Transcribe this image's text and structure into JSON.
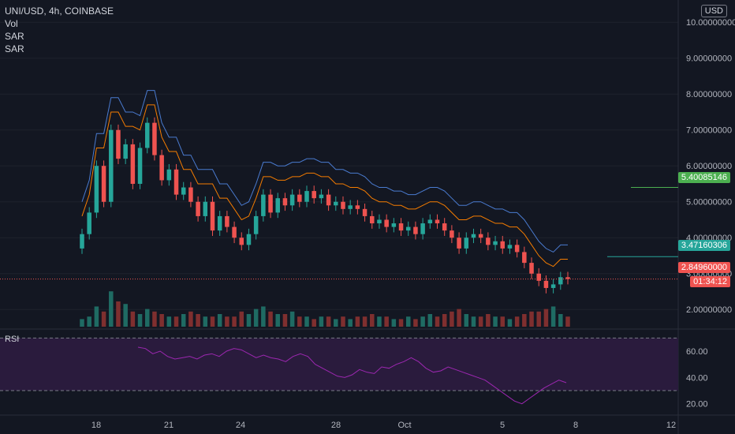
{
  "legend": {
    "symbol": "UNI/USD, 4h, COINBASE",
    "vol": "Vol",
    "sar1": "SAR",
    "sar2": "SAR"
  },
  "rsi_label": "RSI",
  "currency": "USD",
  "price_axis": [
    "10.00000000",
    "9.00000000",
    "8.00000000",
    "7.00000000",
    "6.00000000",
    "5.00000000",
    "4.00000000",
    "3.00000000",
    "2.00000000"
  ],
  "rsi_axis": [
    "60.00",
    "40.00",
    "20.00"
  ],
  "time_axis": [
    "18",
    "21",
    "24",
    "28",
    "Oct",
    "5",
    "8",
    "12"
  ],
  "tags": {
    "green_level": "5.40085146",
    "teal_level": "3.47160306",
    "last_price": "2.84960000",
    "countdown": "01:34:12"
  },
  "colors": {
    "background": "#131722",
    "up": "#26a69a",
    "down": "#ef5350",
    "sar_blue": "#4a7bd0",
    "sar_orange": "#f57c00",
    "rsi_line": "#9c27b0",
    "rsi_band": "#2a1b3d"
  },
  "chart_data": {
    "type": "candlestick",
    "ylim": [
      1.5,
      10.4
    ],
    "rsi_ylim": [
      15,
      75
    ],
    "rsi_bands": [
      70,
      30
    ],
    "horizontal_levels": [
      5.40085146,
      3.47160306,
      2.8496
    ],
    "candles": [
      [
        3.7,
        4.1
      ],
      [
        4.1,
        4.7
      ],
      [
        4.7,
        6.0
      ],
      [
        6.0,
        5.0
      ],
      [
        5.0,
        7.0
      ],
      [
        7.0,
        6.2
      ],
      [
        6.2,
        6.6
      ],
      [
        6.6,
        5.5
      ],
      [
        5.5,
        6.5
      ],
      [
        6.5,
        7.2
      ],
      [
        7.2,
        6.3
      ],
      [
        6.3,
        5.6
      ],
      [
        5.6,
        5.9
      ],
      [
        5.9,
        5.2
      ],
      [
        5.2,
        5.4
      ],
      [
        5.4,
        5.0
      ],
      [
        5.0,
        4.6
      ],
      [
        4.6,
        5.0
      ],
      [
        5.0,
        4.2
      ],
      [
        4.2,
        4.6
      ],
      [
        4.6,
        4.3
      ],
      [
        4.3,
        4.0
      ],
      [
        4.0,
        3.8
      ],
      [
        3.8,
        4.1
      ],
      [
        4.1,
        4.6
      ],
      [
        4.6,
        5.2
      ],
      [
        5.2,
        4.7
      ],
      [
        4.7,
        5.1
      ],
      [
        5.1,
        4.9
      ],
      [
        4.9,
        5.2
      ],
      [
        5.2,
        5.0
      ],
      [
        5.0,
        5.3
      ],
      [
        5.3,
        5.1
      ],
      [
        5.1,
        5.2
      ],
      [
        5.2,
        4.9
      ],
      [
        4.9,
        5.0
      ],
      [
        5.0,
        4.8
      ],
      [
        4.8,
        4.9
      ],
      [
        4.9,
        4.8
      ],
      [
        4.8,
        4.6
      ],
      [
        4.6,
        4.4
      ],
      [
        4.4,
        4.5
      ],
      [
        4.5,
        4.3
      ],
      [
        4.3,
        4.4
      ],
      [
        4.4,
        4.2
      ],
      [
        4.2,
        4.3
      ],
      [
        4.3,
        4.1
      ],
      [
        4.1,
        4.4
      ],
      [
        4.4,
        4.5
      ],
      [
        4.5,
        4.4
      ],
      [
        4.4,
        4.2
      ],
      [
        4.2,
        4.0
      ],
      [
        4.0,
        3.7
      ],
      [
        3.7,
        4.0
      ],
      [
        4.0,
        4.1
      ],
      [
        4.1,
        4.0
      ],
      [
        4.0,
        3.8
      ],
      [
        3.8,
        3.9
      ],
      [
        3.9,
        3.7
      ],
      [
        3.7,
        3.8
      ],
      [
        3.8,
        3.6
      ],
      [
        3.6,
        3.3
      ],
      [
        3.3,
        3.0
      ],
      [
        3.0,
        2.8
      ],
      [
        2.8,
        2.6
      ],
      [
        2.6,
        2.7
      ],
      [
        2.7,
        2.9
      ],
      [
        2.9,
        2.85
      ]
    ],
    "volumes": [
      3,
      4,
      8,
      6,
      14,
      10,
      9,
      6,
      5,
      7,
      6,
      5,
      4,
      4,
      5,
      6,
      5,
      4,
      4,
      5,
      4,
      4,
      6,
      5,
      7,
      8,
      6,
      5,
      5,
      6,
      4,
      4,
      3,
      4,
      4,
      3,
      4,
      3,
      4,
      4,
      5,
      4,
      4,
      3,
      3,
      4,
      3,
      4,
      5,
      4,
      5,
      6,
      7,
      5,
      4,
      4,
      5,
      4,
      4,
      3,
      4,
      5,
      6,
      6,
      7,
      8,
      5,
      4
    ],
    "rsi": [
      63,
      62,
      58,
      60,
      56,
      54,
      55,
      56,
      54,
      57,
      58,
      56,
      60,
      62,
      61,
      58,
      55,
      57,
      55,
      54,
      52,
      56,
      58,
      56,
      50,
      47,
      44,
      41,
      40,
      42,
      46,
      44,
      43,
      48,
      47,
      50,
      52,
      55,
      52,
      47,
      44,
      45,
      48,
      46,
      44,
      42,
      40,
      38,
      34,
      30,
      26,
      22,
      20,
      24,
      28,
      32,
      35,
      38,
      36
    ]
  }
}
